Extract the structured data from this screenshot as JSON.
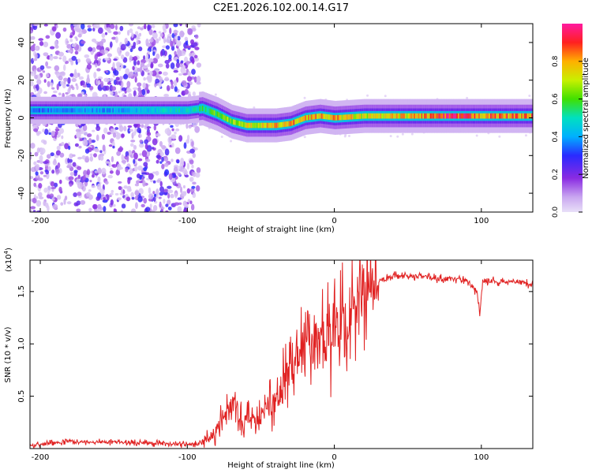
{
  "title": "C2E1.2026.102.00.14.G17",
  "chart_data": [
    {
      "type": "heatmap",
      "xlabel": "Height of straight line (km)",
      "ylabel": "Frequency (Hz)",
      "xlim": [
        -207,
        135
      ],
      "ylim": [
        -50,
        50
      ],
      "xticks": [
        -200,
        -100,
        0,
        100
      ],
      "yticks": [
        -40,
        -20,
        0,
        20,
        40
      ],
      "colorbar": {
        "label": "Normalized spectral amplitude",
        "range": [
          0,
          1
        ],
        "ticks": [
          "0.0",
          "0.2",
          "0.4",
          "0.6",
          "0.8"
        ],
        "tick_values": [
          0.0,
          0.2,
          0.4,
          0.6,
          0.8
        ]
      },
      "ridge": {
        "x": [
          -207,
          -150,
          -100,
          -90,
          -80,
          -70,
          -60,
          -50,
          -40,
          -30,
          -20,
          -10,
          0,
          20,
          50,
          80,
          100,
          135
        ],
        "freq_hz": [
          4,
          4,
          4,
          5,
          2,
          -2,
          -4,
          -4,
          -4,
          -3,
          0,
          1,
          0,
          1,
          1,
          1,
          1,
          1
        ],
        "amplitude": [
          0.35,
          0.4,
          0.5,
          0.55,
          0.62,
          0.68,
          0.72,
          0.75,
          0.78,
          0.8,
          0.82,
          0.78,
          0.8,
          0.72,
          0.78,
          0.92,
          0.85,
          0.85
        ]
      },
      "noise_region_x": [
        -207,
        -92
      ]
    },
    {
      "type": "line",
      "xlabel": "Height of straight line (km)",
      "ylabel": "SNR (10 * v/v)",
      "y_scale_label": "(x10",
      "y_scale_exponent": "4",
      "y_scale_suffix": ")",
      "xlim": [
        -207,
        135
      ],
      "ylim": [
        0,
        1.8
      ],
      "xticks": [
        -200,
        -100,
        0,
        100
      ],
      "yticks": [
        "0.5",
        "1.0",
        "1.5"
      ],
      "ytick_values": [
        0.5,
        1.0,
        1.5
      ],
      "series": [
        {
          "name": "SNR",
          "color": "#e02020",
          "x": [
            -207,
            -180,
            -150,
            -120,
            -100,
            -90,
            -85,
            -80,
            -75,
            -70,
            -65,
            -60,
            -55,
            -50,
            -45,
            -40,
            -35,
            -30,
            -25,
            -20,
            -15,
            -10,
            -5,
            0,
            5,
            10,
            15,
            20,
            25,
            30,
            35,
            40,
            50,
            60,
            70,
            80,
            90,
            97,
            99,
            101,
            110,
            120,
            135
          ],
          "y": [
            0.03,
            0.07,
            0.06,
            0.05,
            0.04,
            0.05,
            0.1,
            0.18,
            0.3,
            0.4,
            0.35,
            0.3,
            0.25,
            0.3,
            0.4,
            0.45,
            0.6,
            0.75,
            0.85,
            0.9,
            0.95,
            1.0,
            1.05,
            1.1,
            1.2,
            1.3,
            1.4,
            1.5,
            1.55,
            1.6,
            1.62,
            1.65,
            1.65,
            1.64,
            1.62,
            1.62,
            1.6,
            1.5,
            1.3,
            1.6,
            1.6,
            1.6,
            1.57
          ]
        }
      ]
    }
  ]
}
